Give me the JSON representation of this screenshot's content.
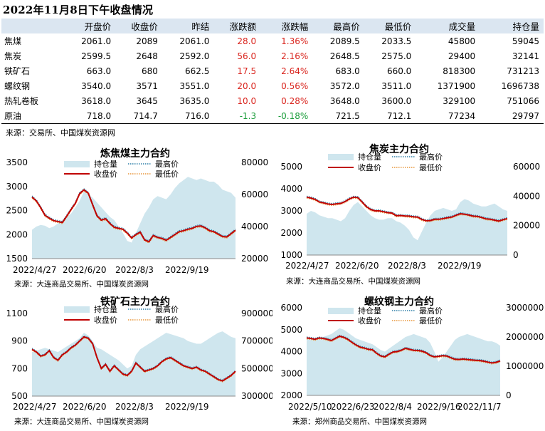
{
  "title": "2022年11月8日下午收盘情况",
  "table": {
    "headers": [
      "",
      "开盘价",
      "收盘价",
      "昨结",
      "涨跌额",
      "涨跌幅",
      "最高价",
      "最低价",
      "成交量",
      "持仓量"
    ],
    "rows": [
      {
        "name": "焦煤",
        "open": "2061.0",
        "close": "2089",
        "prev": "2061.0",
        "chg": "28.0",
        "pct": "1.36%",
        "high": "2089.5",
        "low": "2033.5",
        "vol": "45800",
        "oi": "59045",
        "dir": "up"
      },
      {
        "name": "焦炭",
        "open": "2599.5",
        "close": "2648",
        "prev": "2592.0",
        "chg": "56.0",
        "pct": "2.16%",
        "high": "2648.5",
        "low": "2575.0",
        "vol": "29400",
        "oi": "32141",
        "dir": "up"
      },
      {
        "name": "铁矿石",
        "open": "663.0",
        "close": "680",
        "prev": "662.5",
        "chg": "17.5",
        "pct": "2.64%",
        "high": "683.0",
        "low": "660.0",
        "vol": "818300",
        "oi": "731213",
        "dir": "up"
      },
      {
        "name": "螺纹钢",
        "open": "3540.0",
        "close": "3571",
        "prev": "3551.0",
        "chg": "20.0",
        "pct": "0.56%",
        "high": "3572.0",
        "low": "3511.0",
        "vol": "1371900",
        "oi": "1696738",
        "dir": "up"
      },
      {
        "name": "热轧卷板",
        "open": "3618.0",
        "close": "3645",
        "prev": "3635.0",
        "chg": "10.0",
        "pct": "0.28%",
        "high": "3648.0",
        "low": "3600.0",
        "vol": "329100",
        "oi": "751066",
        "dir": "up"
      },
      {
        "name": "原油",
        "open": "718.0",
        "close": "714.7",
        "prev": "716.0",
        "chg": "-1.3",
        "pct": "-0.18%",
        "high": "721.5",
        "low": "712.1",
        "vol": "77234",
        "oi": "29797",
        "dir": "down"
      }
    ],
    "source": "来源：交易所、中国煤炭资源网"
  },
  "colors": {
    "oi_fill": "#cfe6ee",
    "close": "#c00000",
    "high": "#2e7fa8",
    "low": "#e8953a",
    "up": "#d9231c",
    "down": "#1a9d3a",
    "header_bg": "#dbe6f1"
  },
  "legend": {
    "oi": "持仓量",
    "high": "最高价",
    "close": "收盘价",
    "low": "最低价"
  },
  "chart_data": [
    {
      "type": "line",
      "title": "炼焦煤主力合约",
      "xticks": [
        "2022/4/27",
        "2022/6/20",
        "2022/8/3",
        "2022/9/19"
      ],
      "ylim_left": [
        1500,
        3500
      ],
      "yticks_left": [
        "1500",
        "2000",
        "2500",
        "3000",
        "3500"
      ],
      "ylim_right": [
        20000,
        80000
      ],
      "yticks_right": [
        "20000",
        "40000",
        "60000",
        "80000"
      ],
      "close": [
        2780,
        2700,
        2560,
        2400,
        2340,
        2290,
        2270,
        2250,
        2380,
        2520,
        2650,
        2850,
        2930,
        2860,
        2620,
        2390,
        2300,
        2330,
        2230,
        2150,
        2130,
        2110,
        2030,
        1930,
        2000,
        2050,
        1890,
        1850,
        1980,
        1940,
        1920,
        1880,
        1940,
        2000,
        2060,
        2080,
        2110,
        2130,
        2170,
        2180,
        2140,
        2080,
        2060,
        2010,
        1960,
        1950,
        2020,
        2090
      ],
      "oi": [
        38000,
        40000,
        41000,
        40500,
        39000,
        40000,
        42000,
        44000,
        46000,
        48000,
        52000,
        56000,
        62000,
        60000,
        58000,
        55000,
        52000,
        49000,
        46000,
        44000,
        40000,
        36000,
        31000,
        30000,
        36000,
        42000,
        48000,
        52000,
        57000,
        59000,
        58000,
        57000,
        60000,
        64000,
        67000,
        69000,
        71000,
        70000,
        69000,
        70000,
        69000,
        68000,
        68000,
        66000,
        63000,
        62000,
        61000,
        58000
      ],
      "source": "来源：大连商品交易所、中国煤炭资源网"
    },
    {
      "type": "line",
      "title": "焦炭主力合约",
      "xticks": [
        "2022/4/27",
        "2022/6/20",
        "2022/8/3",
        "2022/9/19"
      ],
      "ylim_left": [
        1000,
        5000
      ],
      "yticks_left": [
        "1000",
        "2000",
        "3000",
        "4000",
        "5000"
      ],
      "ylim_right": [
        0,
        60000
      ],
      "yticks_right": [
        "0",
        "20000",
        "40000",
        "60000"
      ],
      "close": [
        3620,
        3580,
        3520,
        3400,
        3360,
        3310,
        3290,
        3320,
        3340,
        3420,
        3540,
        3620,
        3600,
        3400,
        3190,
        3060,
        3000,
        3000,
        2960,
        2920,
        2900,
        2780,
        2790,
        2770,
        2760,
        2730,
        2720,
        2610,
        2550,
        2560,
        2620,
        2620,
        2650,
        2690,
        2720,
        2800,
        2870,
        2850,
        2810,
        2760,
        2750,
        2700,
        2640,
        2620,
        2580,
        2540,
        2600,
        2650
      ],
      "oi": [
        28000,
        30000,
        29000,
        27000,
        26000,
        25000,
        25000,
        24000,
        23000,
        25000,
        30000,
        34000,
        36000,
        33000,
        30000,
        27000,
        25000,
        24000,
        24000,
        25000,
        25000,
        23000,
        22000,
        20000,
        17000,
        12000,
        10000,
        16000,
        22000,
        27000,
        30000,
        31000,
        32000,
        31000,
        30000,
        31000,
        36000,
        38000,
        37000,
        35000,
        34000,
        33000,
        33000,
        34000,
        35000,
        33000,
        31000,
        30000
      ],
      "source": "来源：大连商品交易所、中国煤炭资源网"
    },
    {
      "type": "line",
      "title": "铁矿石主力合约",
      "xticks": [
        "2022/4/27",
        "2022/6/20",
        "2022/8/3",
        "2022/9/19"
      ],
      "ylim_left": [
        500,
        1100
      ],
      "yticks_left": [
        "500",
        "700",
        "900",
        "1100"
      ],
      "ylim_right": [
        300000,
        900000
      ],
      "yticks_right": [
        "300000",
        "500000",
        "700000",
        "900000"
      ],
      "close": [
        840,
        820,
        790,
        800,
        830,
        780,
        760,
        800,
        820,
        850,
        870,
        900,
        930,
        920,
        880,
        780,
        700,
        730,
        680,
        720,
        690,
        660,
        650,
        680,
        740,
        710,
        680,
        690,
        700,
        720,
        750,
        770,
        780,
        760,
        740,
        720,
        710,
        700,
        710,
        690,
        680,
        660,
        640,
        620,
        610,
        630,
        650,
        680
      ],
      "oi": [
        620000,
        630000,
        640000,
        650000,
        640000,
        630000,
        620000,
        640000,
        660000,
        680000,
        700000,
        720000,
        760000,
        740000,
        700000,
        650000,
        640000,
        620000,
        600000,
        580000,
        560000,
        530000,
        500000,
        520000,
        600000,
        640000,
        660000,
        680000,
        700000,
        720000,
        740000,
        760000,
        750000,
        740000,
        730000,
        720000,
        700000,
        690000,
        680000,
        680000,
        700000,
        720000,
        740000,
        760000,
        770000,
        750000,
        730000,
        720000
      ],
      "source": "来源：大连商品交易所、中国煤炭资源网"
    },
    {
      "type": "line",
      "title": "螺纹钢主力合约",
      "xticks": [
        "2022/5/10",
        "2022/6/23",
        "2022/8/4",
        "2022/9/16",
        "2022/11/7"
      ],
      "ylim_left": [
        2000,
        6000
      ],
      "yticks_left": [
        "2000",
        "3000",
        "4000",
        "5000",
        "6000"
      ],
      "ylim_right": [
        0,
        3000000
      ],
      "yticks_right": [
        "0",
        "1000000",
        "2000000",
        "3000000"
      ],
      "close": [
        4620,
        4600,
        4560,
        4620,
        4600,
        4560,
        4500,
        4600,
        4700,
        4650,
        4560,
        4420,
        4300,
        4200,
        4160,
        4100,
        4080,
        3920,
        3800,
        3760,
        3880,
        3980,
        4000,
        4060,
        4150,
        4100,
        4060,
        4050,
        4020,
        3950,
        3820,
        3760,
        3780,
        3810,
        3800,
        3720,
        3650,
        3640,
        3660,
        3640,
        3620,
        3600,
        3590,
        3560,
        3520,
        3480,
        3510,
        3571
      ],
      "oi": [
        2000000,
        1950000,
        1900000,
        1950000,
        2000000,
        2050000,
        2100000,
        2200000,
        2300000,
        2250000,
        2150000,
        2050000,
        1950000,
        1900000,
        1850000,
        1800000,
        1750000,
        1650000,
        1550000,
        1500000,
        1600000,
        1700000,
        1800000,
        1900000,
        2000000,
        2050000,
        2100000,
        2050000,
        2000000,
        1950000,
        1800000,
        1500000,
        1150000,
        1300000,
        1500000,
        1700000,
        1900000,
        2000000,
        2050000,
        2100000,
        2050000,
        2000000,
        1950000,
        1900000,
        1850000,
        1850000,
        1800000,
        1700000
      ],
      "source": "来源：郑州商品交易所、中国煤炭资源网"
    }
  ]
}
